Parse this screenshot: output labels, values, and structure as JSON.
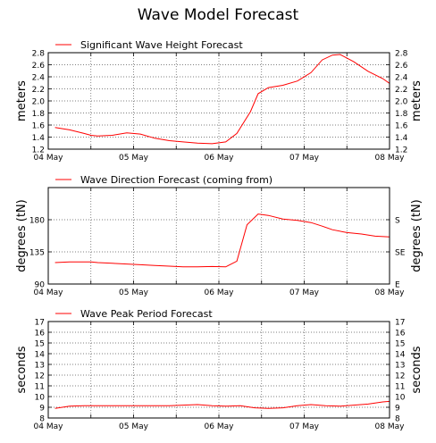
{
  "title": "Wave Model Forecast",
  "colors": {
    "line": "#ff0000",
    "axis": "#000000",
    "grid": "#555555",
    "background": "#ffffff"
  },
  "x_tick_labels": [
    "04 May",
    "05 May",
    "06 May",
    "07 May",
    "08 May"
  ],
  "chart_data": [
    {
      "type": "line",
      "legend": "Significant Wave Height Forecast",
      "ylabel_left": "meters",
      "ylabel_right": "meters",
      "xlim": [
        0,
        4
      ],
      "ylim": [
        1.2,
        2.8
      ],
      "yticks": [
        1.2,
        1.4,
        1.6,
        1.8,
        2.0,
        2.2,
        2.4,
        2.6,
        2.8
      ],
      "ytick_labels": [
        "1.2",
        "1.4",
        "1.6",
        "1.8",
        "2.0",
        "2.2",
        "2.4",
        "2.6",
        "2.8"
      ],
      "right_ytick_labels": [
        "1.2",
        "1.4",
        "1.6",
        "1.8",
        "2.0",
        "2.2",
        "2.4",
        "2.6",
        "2.8"
      ],
      "grid": true,
      "legend_position": "top-left",
      "series": [
        {
          "x": [
            0.08,
            0.25,
            0.42,
            0.5,
            0.58,
            0.75,
            0.92,
            1.08,
            1.25,
            1.42,
            1.58,
            1.75,
            1.92,
            2.08,
            2.21,
            2.37,
            2.46,
            2.58,
            2.75,
            2.92,
            3.08,
            3.21,
            3.33,
            3.42,
            3.58,
            3.75,
            3.92,
            4.0
          ],
          "y": [
            1.56,
            1.52,
            1.46,
            1.43,
            1.42,
            1.43,
            1.47,
            1.45,
            1.38,
            1.34,
            1.32,
            1.3,
            1.29,
            1.32,
            1.46,
            1.82,
            2.12,
            2.22,
            2.26,
            2.33,
            2.47,
            2.68,
            2.76,
            2.77,
            2.65,
            2.49,
            2.37,
            2.29
          ]
        }
      ]
    },
    {
      "type": "line",
      "legend": "Wave Direction Forecast (coming from)",
      "ylabel_left": "degrees (tN)",
      "ylabel_right": "degrees (tN)",
      "xlim": [
        0,
        4
      ],
      "ylim": [
        90,
        225
      ],
      "yticks": [
        90,
        135,
        180
      ],
      "ytick_labels": [
        "90",
        "135",
        "180"
      ],
      "right_yticks": [
        90,
        135,
        180
      ],
      "right_ytick_labels": [
        "E",
        "SE",
        "S"
      ],
      "grid": true,
      "legend_position": "top-left",
      "series": [
        {
          "x": [
            0.08,
            0.25,
            0.42,
            0.5,
            0.58,
            0.75,
            0.92,
            1.08,
            1.25,
            1.42,
            1.58,
            1.75,
            1.92,
            2.08,
            2.21,
            2.33,
            2.46,
            2.58,
            2.75,
            2.92,
            3.08,
            3.21,
            3.33,
            3.5,
            3.67,
            3.83,
            4.0
          ],
          "y": [
            120,
            121,
            121,
            121,
            120,
            119,
            118,
            117,
            116,
            115,
            114,
            114,
            114.5,
            114,
            122,
            173,
            188,
            186,
            181,
            179,
            176,
            171,
            166,
            162,
            160,
            157,
            156
          ]
        }
      ]
    },
    {
      "type": "line",
      "legend": "Wave Peak Period Forecast",
      "ylabel_left": "seconds",
      "ylabel_right": "seconds",
      "xlim": [
        0,
        4
      ],
      "ylim": [
        8,
        17
      ],
      "yticks": [
        8,
        9,
        10,
        11,
        12,
        13,
        14,
        15,
        16,
        17
      ],
      "ytick_labels": [
        "8",
        "9",
        "10",
        "11",
        "12",
        "13",
        "14",
        "15",
        "16",
        "17"
      ],
      "right_ytick_labels": [
        "8",
        "9",
        "10",
        "11",
        "12",
        "13",
        "14",
        "15",
        "16",
        "17"
      ],
      "grid": true,
      "legend_position": "top-left",
      "series": [
        {
          "x": [
            0.08,
            0.25,
            0.42,
            0.58,
            0.75,
            0.92,
            1.08,
            1.25,
            1.42,
            1.58,
            1.75,
            1.92,
            2.08,
            2.25,
            2.42,
            2.58,
            2.75,
            2.92,
            3.08,
            3.25,
            3.42,
            3.58,
            3.75,
            3.92,
            4.0
          ],
          "y": [
            8.9,
            9.1,
            9.15,
            9.15,
            9.15,
            9.15,
            9.15,
            9.15,
            9.15,
            9.2,
            9.25,
            9.15,
            9.1,
            9.15,
            8.95,
            8.9,
            8.95,
            9.15,
            9.25,
            9.15,
            9.1,
            9.2,
            9.3,
            9.5,
            9.55
          ]
        }
      ]
    }
  ]
}
